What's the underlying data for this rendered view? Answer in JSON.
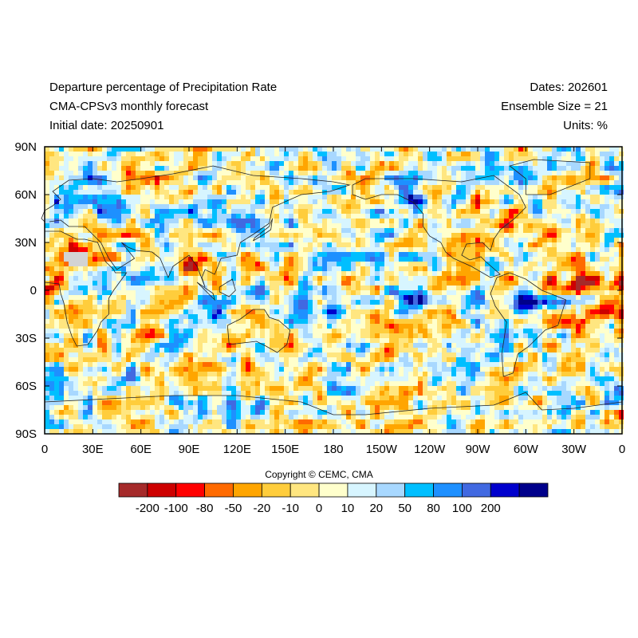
{
  "header": {
    "title_line1": "Departure percentage of Precipitation Rate",
    "title_line2": "CMA-CPSv3 monthly forecast",
    "title_line3": "Initial date: 20250901",
    "right_line1": "Dates: 202601",
    "right_line2": "Ensemble Size = 21",
    "right_line3": "Units: %"
  },
  "map": {
    "lat_labels": [
      "90N",
      "60N",
      "30N",
      "0",
      "30S",
      "60S",
      "90S"
    ],
    "lon_labels": [
      "0",
      "30E",
      "60E",
      "90E",
      "120E",
      "150E",
      "180",
      "150W",
      "120W",
      "90W",
      "60W",
      "30W",
      "0"
    ],
    "missing_color": "#d3d3d3"
  },
  "colorbar": {
    "colors": [
      "#a52a2a",
      "#cd0000",
      "#ff0000",
      "#ff6a00",
      "#ffa500",
      "#ffcd3c",
      "#ffe680",
      "#ffffcc",
      "#d7f5ff",
      "#a8d8ff",
      "#00bfff",
      "#1e90ff",
      "#4169e1",
      "#0000cd",
      "#00008b"
    ],
    "tick_labels": [
      "-200",
      "-100",
      "-80",
      "-50",
      "-20",
      "-10",
      "0",
      "10",
      "20",
      "50",
      "80",
      "100",
      "200"
    ]
  },
  "copyright": "Copyright © CEMC, CMA"
}
